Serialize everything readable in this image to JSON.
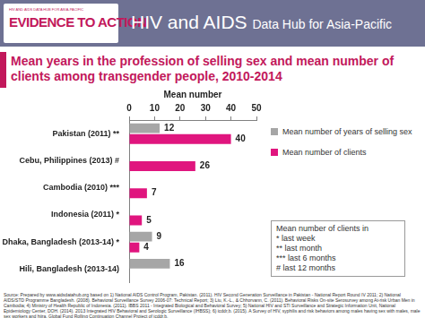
{
  "header": {
    "logo_small": "HIV AND AIDS DATA HUB FOR ASIA-PACIFIC",
    "logo": "EVIDENCE TO ACTION",
    "title": "HIV and AIDS",
    "subtitle": "Data Hub for Asia-Pacific"
  },
  "chart_data": {
    "type": "bar",
    "orientation": "horizontal",
    "title": "Mean years in the profession of selling sex and mean number of clients among transgender people, 2010-2014",
    "x_label": "Mean number",
    "categories": [
      "Pakistan (2011) **",
      "Cebu, Philippines (2013) #",
      "Cambodia (2010) ***",
      "Indonesia (2011) *",
      "Dhaka, Bangladesh (2013-14) *",
      "Hili, Bangladesh (2013-14)"
    ],
    "series": [
      {
        "name": "Mean number of years of selling sex",
        "color": "#a6a6a6",
        "values": [
          12,
          null,
          null,
          null,
          9,
          16
        ]
      },
      {
        "name": "Mean number of clients",
        "color": "#e0157e",
        "values": [
          40,
          26,
          7,
          5,
          4,
          null
        ]
      }
    ],
    "xlim": [
      0,
      50
    ],
    "xticks": [
      0,
      10,
      20,
      30,
      40,
      50
    ],
    "grid": false,
    "legend": "right",
    "data_labels": true,
    "note": [
      "Mean number of clients in",
      "* last week",
      "** last month",
      "*** last 6 months",
      "# last 12 months"
    ],
    "source": "Source: Prepared by www.aidsdatahub.org based on 1) National AIDS Control Program, Pakistan. (2011). HIV Second Generation Surveillance in Pakistan - National Report Round IV 2011; 2) National AIDS/STD Programme Bangladesh. (2008). Behavioral Surveillance Survey 2006-07: Technical Report; 3) Liu, K.-L., & Chhorvann, C. (2011). Behavioral Risks On-site Serosurvey among At-risk Urban Men in Cambodia; 4) Ministry of Health Republic of Indonesia. (2011). IBBS 2011 - Integrated Biological and Behavioral Survey; 5) National HIV and STI Surveillance and Strategic Information Unit, National Epidemiology Center, DOH. (2014). 2013 Integrated HIV Behavioral and Serologic Surveillance (IHBSS); 6) icddr,b. (2015). A Survey of HIV, syphilis and risk behaviors among males having sex with males, male sex workers and hijra. Global Fund Rolling Continuation Channel Project of icddr,b."
  }
}
